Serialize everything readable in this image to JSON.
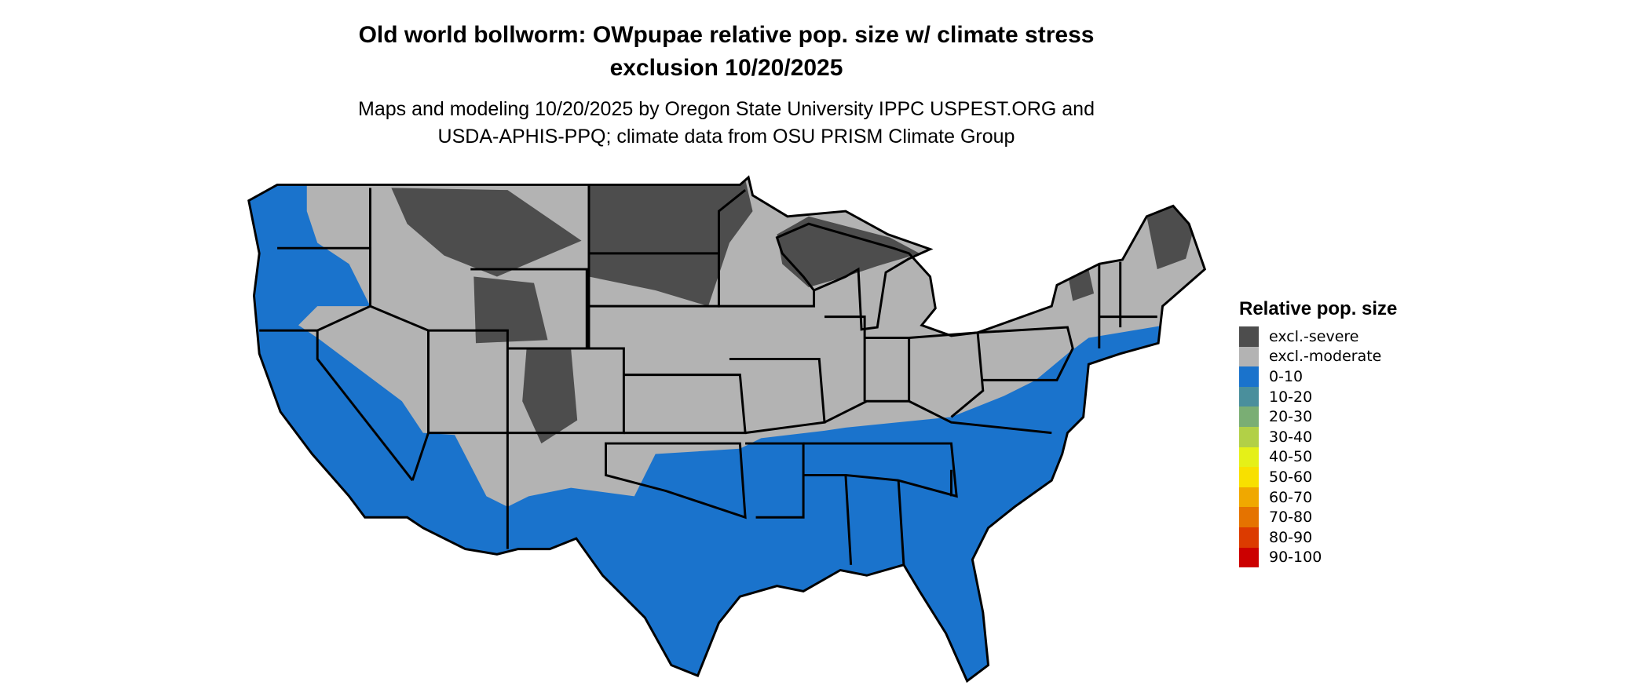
{
  "title_line1": "Old world bollworm: OWpupae relative pop. size w/ climate stress",
  "title_line2": "exclusion 10/20/2025",
  "subtitle_line1": "Maps and modeling 10/20/2025 by Oregon State University IPPC USPEST.ORG and",
  "subtitle_line2": "USDA-APHIS-PPQ; climate data from OSU PRISM Climate Group",
  "map": {
    "region": "Contiguous United States",
    "colors": {
      "excl_severe": "#4d4d4d",
      "excl_moderate": "#b3b3b3",
      "0-10": "#1a73cc",
      "border": "#000000"
    }
  },
  "legend": {
    "title": "Relative pop. size",
    "items": [
      {
        "label": "excl.-severe",
        "color": "#4d4d4d"
      },
      {
        "label": "excl.-moderate",
        "color": "#b3b3b3"
      },
      {
        "label": "0-10",
        "color": "#1a73cc"
      },
      {
        "label": "10-20",
        "color": "#4a8f9c"
      },
      {
        "label": "20-30",
        "color": "#7aae74"
      },
      {
        "label": "30-40",
        "color": "#b2d047"
      },
      {
        "label": "40-50",
        "color": "#e5f018"
      },
      {
        "label": "50-60",
        "color": "#f8e000"
      },
      {
        "label": "60-70",
        "color": "#f0a800"
      },
      {
        "label": "70-80",
        "color": "#e57300"
      },
      {
        "label": "80-90",
        "color": "#dc3b00"
      },
      {
        "label": "90-100",
        "color": "#cc0000"
      }
    ]
  }
}
